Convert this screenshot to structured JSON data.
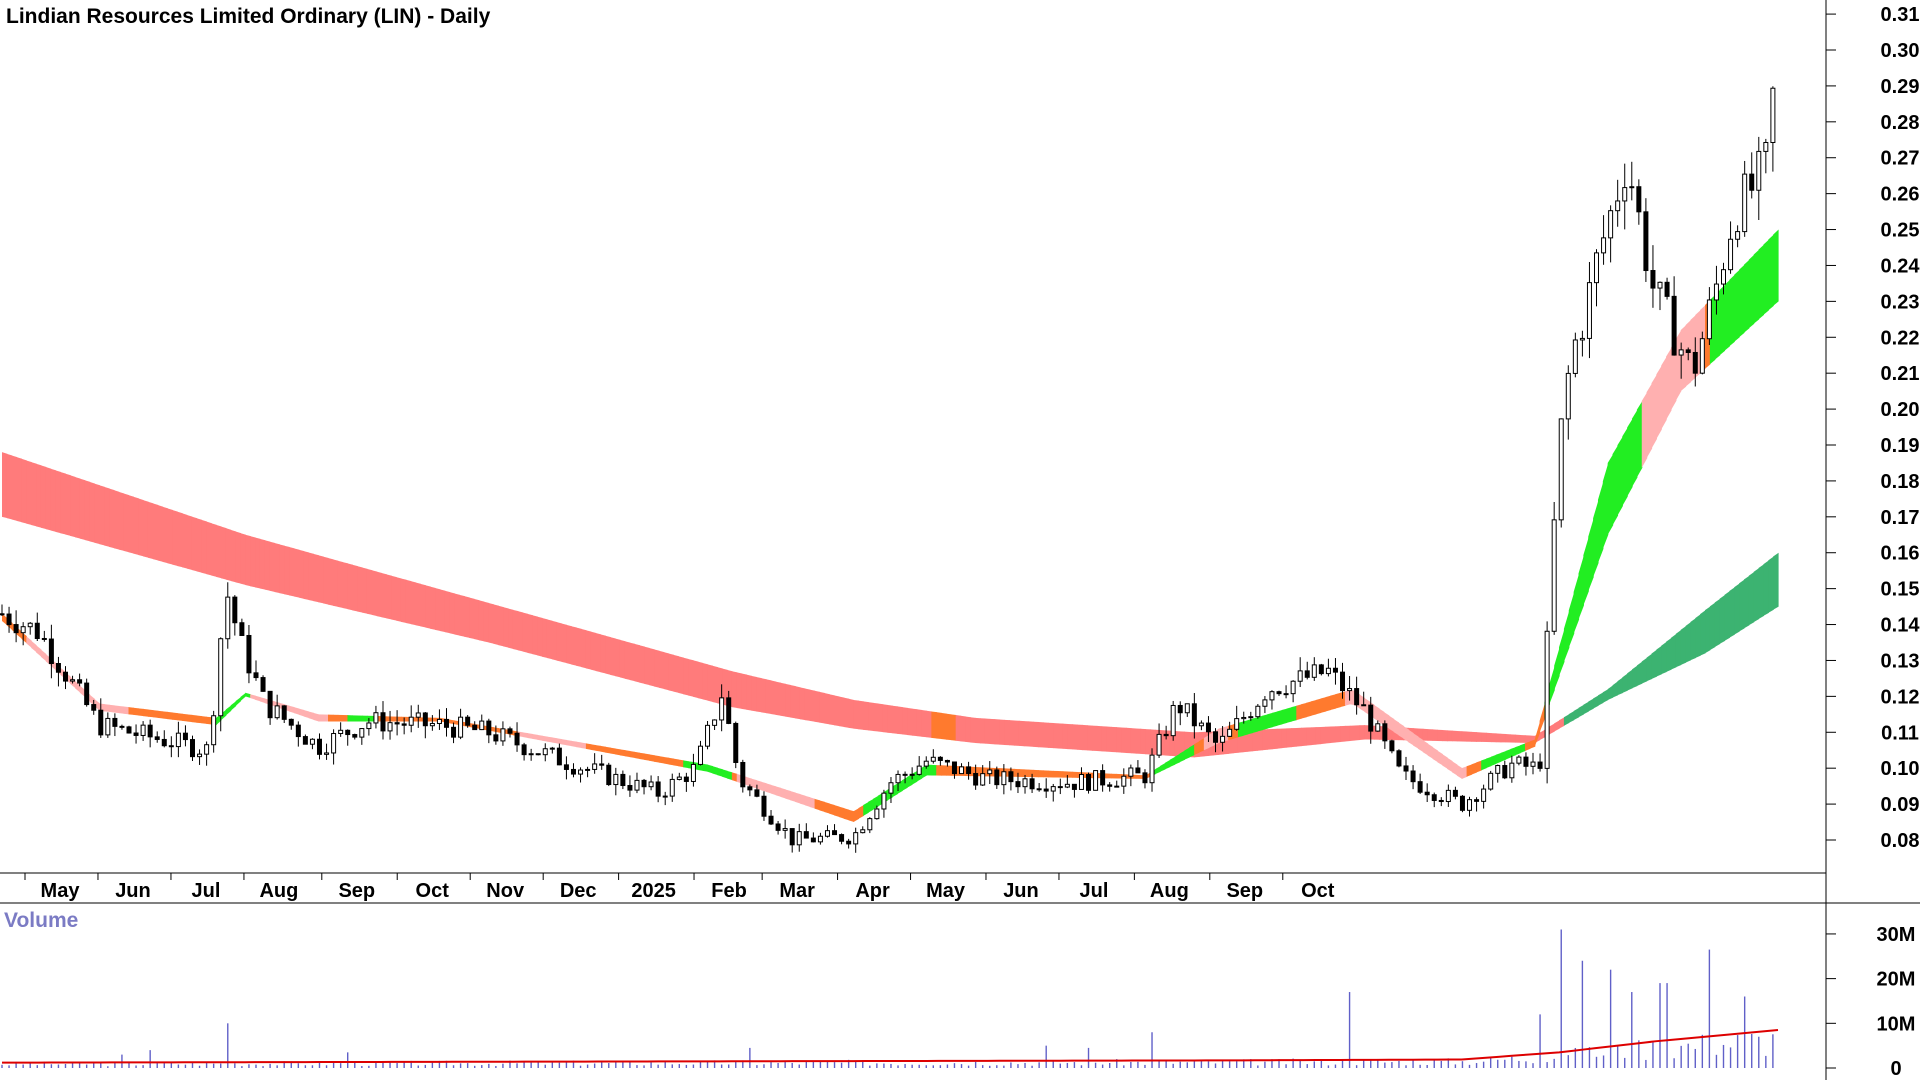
{
  "chart_data": {
    "type": "candlestick",
    "title": "Lindian Resources Limited Ordinary (LIN) - Daily",
    "period": "Daily",
    "ylim": [
      0.075,
      0.315
    ],
    "y_ticks": [
      "0.31",
      "0.30",
      "0.29",
      "0.28",
      "0.27",
      "0.26",
      "0.25",
      "0.24",
      "0.23",
      "0.22",
      "0.21",
      "0.20",
      "0.19",
      "0.18",
      "0.17",
      "0.16",
      "0.15",
      "0.14",
      "0.13",
      "0.12",
      "0.11",
      "0.10",
      "0.09",
      "0.08"
    ],
    "x_ticks": [
      "May",
      "Jun",
      "Jul",
      "Aug",
      "Sep",
      "Oct",
      "Nov",
      "Dec",
      "2025",
      "Feb",
      "Mar",
      "Apr",
      "May",
      "Jun",
      "Jul",
      "Aug",
      "Sep",
      "Oct"
    ],
    "price_anchors": [
      {
        "d": 0,
        "p": 0.143
      },
      {
        "d": 15,
        "p": 0.138
      },
      {
        "d": 40,
        "p": 0.112
      },
      {
        "d": 85,
        "p": 0.105
      },
      {
        "d": 92,
        "p": 0.15
      },
      {
        "d": 98,
        "p": 0.135
      },
      {
        "d": 108,
        "p": 0.118
      },
      {
        "d": 130,
        "p": 0.106
      },
      {
        "d": 150,
        "p": 0.113
      },
      {
        "d": 180,
        "p": 0.112
      },
      {
        "d": 200,
        "p": 0.11
      },
      {
        "d": 235,
        "p": 0.101
      },
      {
        "d": 270,
        "p": 0.093
      },
      {
        "d": 285,
        "p": 0.1
      },
      {
        "d": 296,
        "p": 0.121
      },
      {
        "d": 303,
        "p": 0.097
      },
      {
        "d": 325,
        "p": 0.08
      },
      {
        "d": 350,
        "p": 0.081
      },
      {
        "d": 365,
        "p": 0.096
      },
      {
        "d": 380,
        "p": 0.102
      },
      {
        "d": 405,
        "p": 0.097
      },
      {
        "d": 440,
        "p": 0.096
      },
      {
        "d": 470,
        "p": 0.098
      },
      {
        "d": 483,
        "p": 0.118
      },
      {
        "d": 500,
        "p": 0.106
      },
      {
        "d": 520,
        "p": 0.122
      },
      {
        "d": 545,
        "p": 0.127
      },
      {
        "d": 560,
        "p": 0.116
      },
      {
        "d": 575,
        "p": 0.098
      },
      {
        "d": 600,
        "p": 0.09
      },
      {
        "d": 620,
        "p": 0.101
      },
      {
        "d": 632,
        "p": 0.1
      },
      {
        "d": 640,
        "p": 0.19
      },
      {
        "d": 645,
        "p": 0.215
      },
      {
        "d": 650,
        "p": 0.225
      },
      {
        "d": 655,
        "p": 0.24
      },
      {
        "d": 668,
        "p": 0.27
      },
      {
        "d": 678,
        "p": 0.235
      },
      {
        "d": 688,
        "p": 0.22
      },
      {
        "d": 695,
        "p": 0.21
      },
      {
        "d": 705,
        "p": 0.235
      },
      {
        "d": 712,
        "p": 0.255
      },
      {
        "d": 720,
        "p": 0.262
      },
      {
        "d": 725,
        "p": 0.268
      },
      {
        "d": 730,
        "p": 0.3
      }
    ],
    "ma_short": [
      {
        "d": 0,
        "lo": 0.141,
        "hi": 0.143
      },
      {
        "d": 40,
        "lo": 0.116,
        "hi": 0.118
      },
      {
        "d": 88,
        "lo": 0.112,
        "hi": 0.114
      },
      {
        "d": 100,
        "lo": 0.12,
        "hi": 0.121
      },
      {
        "d": 130,
        "lo": 0.113,
        "hi": 0.115
      },
      {
        "d": 180,
        "lo": 0.113,
        "hi": 0.114
      },
      {
        "d": 290,
        "lo": 0.099,
        "hi": 0.101
      },
      {
        "d": 350,
        "lo": 0.085,
        "hi": 0.088
      },
      {
        "d": 380,
        "lo": 0.098,
        "hi": 0.101
      },
      {
        "d": 470,
        "lo": 0.097,
        "hi": 0.098
      },
      {
        "d": 500,
        "lo": 0.107,
        "hi": 0.111
      },
      {
        "d": 555,
        "lo": 0.118,
        "hi": 0.122
      },
      {
        "d": 600,
        "lo": 0.097,
        "hi": 0.1
      },
      {
        "d": 630,
        "lo": 0.106,
        "hi": 0.108
      },
      {
        "d": 660,
        "lo": 0.165,
        "hi": 0.185
      },
      {
        "d": 690,
        "lo": 0.205,
        "hi": 0.222
      },
      {
        "d": 730,
        "lo": 0.23,
        "hi": 0.25
      }
    ],
    "ma_long": [
      {
        "d": 0,
        "lo": 0.17,
        "hi": 0.188
      },
      {
        "d": 100,
        "lo": 0.151,
        "hi": 0.165
      },
      {
        "d": 200,
        "lo": 0.135,
        "hi": 0.146
      },
      {
        "d": 300,
        "lo": 0.117,
        "hi": 0.127
      },
      {
        "d": 350,
        "lo": 0.111,
        "hi": 0.119
      },
      {
        "d": 400,
        "lo": 0.107,
        "hi": 0.114
      },
      {
        "d": 490,
        "lo": 0.103,
        "hi": 0.11
      },
      {
        "d": 560,
        "lo": 0.108,
        "hi": 0.112
      },
      {
        "d": 630,
        "lo": 0.107,
        "hi": 0.109
      },
      {
        "d": 660,
        "lo": 0.119,
        "hi": 0.122
      },
      {
        "d": 700,
        "lo": 0.132,
        "hi": 0.144
      },
      {
        "d": 730,
        "lo": 0.145,
        "hi": 0.16
      }
    ],
    "volume": {
      "label": "Volume",
      "ylim": [
        0,
        32000000
      ],
      "ticks": [
        "30M",
        "20M",
        "10M",
        "0"
      ],
      "ma": [
        {
          "d": 0,
          "v": 1200000
        },
        {
          "d": 300,
          "v": 1500000
        },
        {
          "d": 500,
          "v": 1700000
        },
        {
          "d": 600,
          "v": 1900000
        },
        {
          "d": 640,
          "v": 3500000
        },
        {
          "d": 680,
          "v": 6000000
        },
        {
          "d": 730,
          "v": 8500000
        }
      ],
      "spikes": [
        {
          "d": 92,
          "v": 10000000
        },
        {
          "d": 48,
          "v": 3000000
        },
        {
          "d": 62,
          "v": 4000000
        },
        {
          "d": 143,
          "v": 3500000
        },
        {
          "d": 307,
          "v": 4500000
        },
        {
          "d": 430,
          "v": 5000000
        },
        {
          "d": 447,
          "v": 4500000
        },
        {
          "d": 473,
          "v": 8000000
        },
        {
          "d": 553,
          "v": 17000000
        },
        {
          "d": 633,
          "v": 12000000
        },
        {
          "d": 640,
          "v": 31000000
        },
        {
          "d": 650,
          "v": 24000000
        },
        {
          "d": 660,
          "v": 22000000
        },
        {
          "d": 670,
          "v": 17000000
        },
        {
          "d": 683,
          "v": 19000000
        },
        {
          "d": 702,
          "v": 26500000
        },
        {
          "d": 715,
          "v": 16000000
        },
        {
          "d": 730,
          "v": 17000000
        }
      ]
    }
  }
}
